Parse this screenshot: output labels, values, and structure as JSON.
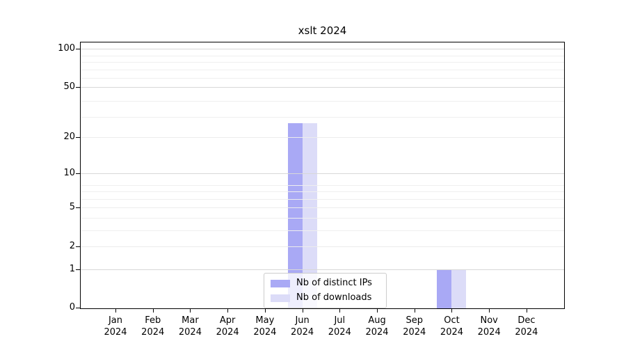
{
  "chart_data": {
    "type": "bar",
    "title": "xslt 2024",
    "x": {
      "months": [
        "Jan",
        "Feb",
        "Mar",
        "Apr",
        "May",
        "Jun",
        "Jul",
        "Aug",
        "Sep",
        "Oct",
        "Nov",
        "Dec"
      ],
      "year": "2024"
    },
    "y_axis": {
      "scale": "log10(value+1)",
      "ticks": [
        0,
        1,
        2,
        5,
        10,
        20,
        50,
        100
      ],
      "emphasized_gridlines": [
        1,
        10,
        50,
        100
      ],
      "minor_gridlines": [
        3,
        4,
        6,
        7,
        8,
        29,
        39,
        59,
        69,
        79,
        89
      ],
      "ylim": [
        0,
        113
      ],
      "grid": true
    },
    "series": [
      {
        "name": "Nb of distinct IPs",
        "color": "#a9a9f5",
        "values": [
          0,
          0,
          0,
          0,
          0,
          26,
          0,
          0,
          0,
          1,
          0,
          0
        ]
      },
      {
        "name": "Nb of downloads",
        "color": "#dcdcf8",
        "values": [
          0,
          0,
          0,
          0,
          0,
          26,
          0,
          0,
          0,
          1,
          0,
          0
        ]
      }
    ],
    "legend_position": "lower center"
  },
  "colors": {
    "background": "#ffffff",
    "spine": "#000000",
    "grid_emphasized": "#d8d8d8",
    "grid_plain": "#ececec",
    "grid_minor": "#efefef",
    "legend_border": "#cccccc",
    "text": "#000000"
  }
}
